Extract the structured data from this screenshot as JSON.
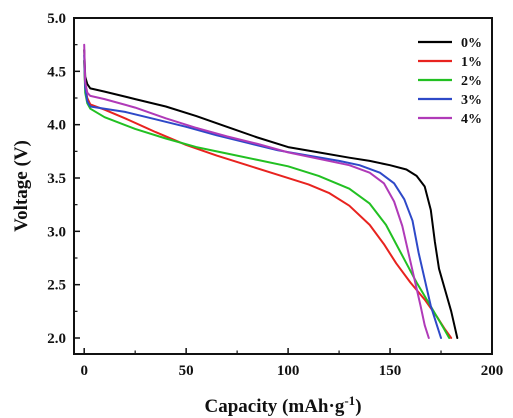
{
  "chart_data": {
    "type": "line",
    "title": "",
    "xlabel": "Capacity (mAh·g",
    "xlabel_superscript": "-1",
    "xlabel_close": ")",
    "ylabel": "Voltage (V)",
    "xlim": [
      -5,
      200
    ],
    "ylim": [
      1.85,
      5.0
    ],
    "x_ticks": [
      0,
      50,
      100,
      150,
      200
    ],
    "x_tick_labels": [
      "0",
      "50",
      "100",
      "150",
      "200"
    ],
    "y_ticks": [
      2.0,
      2.5,
      3.0,
      3.5,
      4.0,
      4.5,
      5.0
    ],
    "y_tick_labels": [
      "2.0",
      "2.5",
      "3.0",
      "3.5",
      "4.0",
      "4.5",
      "5.0"
    ],
    "grid": false,
    "legend_position": "top-right",
    "series": [
      {
        "name": "0%",
        "color": "#000000",
        "points": [
          [
            0,
            4.7
          ],
          [
            0.5,
            4.45
          ],
          [
            1.5,
            4.38
          ],
          [
            3,
            4.34
          ],
          [
            10,
            4.31
          ],
          [
            25,
            4.24
          ],
          [
            40,
            4.17
          ],
          [
            55,
            4.08
          ],
          [
            70,
            3.98
          ],
          [
            85,
            3.88
          ],
          [
            100,
            3.79
          ],
          [
            115,
            3.74
          ],
          [
            130,
            3.69
          ],
          [
            140,
            3.66
          ],
          [
            150,
            3.62
          ],
          [
            158,
            3.58
          ],
          [
            163,
            3.52
          ],
          [
            167,
            3.42
          ],
          [
            170,
            3.2
          ],
          [
            172,
            2.9
          ],
          [
            174,
            2.65
          ],
          [
            177,
            2.45
          ],
          [
            180,
            2.25
          ],
          [
            183,
            2.0
          ]
        ]
      },
      {
        "name": "1%",
        "color": "#e8231f",
        "points": [
          [
            0,
            4.6
          ],
          [
            0.5,
            4.35
          ],
          [
            1.5,
            4.25
          ],
          [
            3,
            4.19
          ],
          [
            10,
            4.14
          ],
          [
            20,
            4.06
          ],
          [
            35,
            3.93
          ],
          [
            50,
            3.81
          ],
          [
            65,
            3.71
          ],
          [
            80,
            3.62
          ],
          [
            95,
            3.53
          ],
          [
            110,
            3.44
          ],
          [
            120,
            3.36
          ],
          [
            130,
            3.24
          ],
          [
            140,
            3.06
          ],
          [
            147,
            2.88
          ],
          [
            153,
            2.7
          ],
          [
            160,
            2.52
          ],
          [
            167,
            2.36
          ],
          [
            173,
            2.2
          ],
          [
            177,
            2.08
          ],
          [
            180,
            2.0
          ]
        ]
      },
      {
        "name": "2%",
        "color": "#22c022",
        "points": [
          [
            0,
            4.6
          ],
          [
            0.5,
            4.3
          ],
          [
            1.5,
            4.2
          ],
          [
            3,
            4.15
          ],
          [
            10,
            4.07
          ],
          [
            25,
            3.96
          ],
          [
            40,
            3.87
          ],
          [
            55,
            3.79
          ],
          [
            70,
            3.73
          ],
          [
            85,
            3.67
          ],
          [
            100,
            3.61
          ],
          [
            115,
            3.52
          ],
          [
            130,
            3.4
          ],
          [
            140,
            3.26
          ],
          [
            148,
            3.06
          ],
          [
            153,
            2.88
          ],
          [
            158,
            2.7
          ],
          [
            163,
            2.52
          ],
          [
            168,
            2.36
          ],
          [
            173,
            2.2
          ],
          [
            176,
            2.1
          ],
          [
            179,
            2.0
          ]
        ]
      },
      {
        "name": "3%",
        "color": "#2e49c8",
        "points": [
          [
            0,
            4.65
          ],
          [
            0.5,
            4.35
          ],
          [
            1.5,
            4.22
          ],
          [
            3,
            4.17
          ],
          [
            10,
            4.15
          ],
          [
            20,
            4.12
          ],
          [
            35,
            4.05
          ],
          [
            50,
            3.98
          ],
          [
            65,
            3.9
          ],
          [
            80,
            3.83
          ],
          [
            95,
            3.76
          ],
          [
            110,
            3.71
          ],
          [
            125,
            3.66
          ],
          [
            135,
            3.62
          ],
          [
            145,
            3.55
          ],
          [
            152,
            3.45
          ],
          [
            157,
            3.3
          ],
          [
            161,
            3.1
          ],
          [
            164,
            2.8
          ],
          [
            167,
            2.55
          ],
          [
            170,
            2.3
          ],
          [
            173,
            2.12
          ],
          [
            175,
            2.0
          ]
        ]
      },
      {
        "name": "4%",
        "color": "#b03ab8",
        "points": [
          [
            0,
            4.75
          ],
          [
            0.5,
            4.4
          ],
          [
            1.5,
            4.3
          ],
          [
            3,
            4.27
          ],
          [
            10,
            4.24
          ],
          [
            25,
            4.16
          ],
          [
            40,
            4.06
          ],
          [
            55,
            3.97
          ],
          [
            70,
            3.89
          ],
          [
            85,
            3.82
          ],
          [
            100,
            3.74
          ],
          [
            115,
            3.68
          ],
          [
            130,
            3.62
          ],
          [
            140,
            3.55
          ],
          [
            147,
            3.45
          ],
          [
            152,
            3.28
          ],
          [
            156,
            3.05
          ],
          [
            159,
            2.8
          ],
          [
            162,
            2.55
          ],
          [
            165,
            2.3
          ],
          [
            167,
            2.12
          ],
          [
            169,
            2.0
          ]
        ]
      }
    ]
  }
}
